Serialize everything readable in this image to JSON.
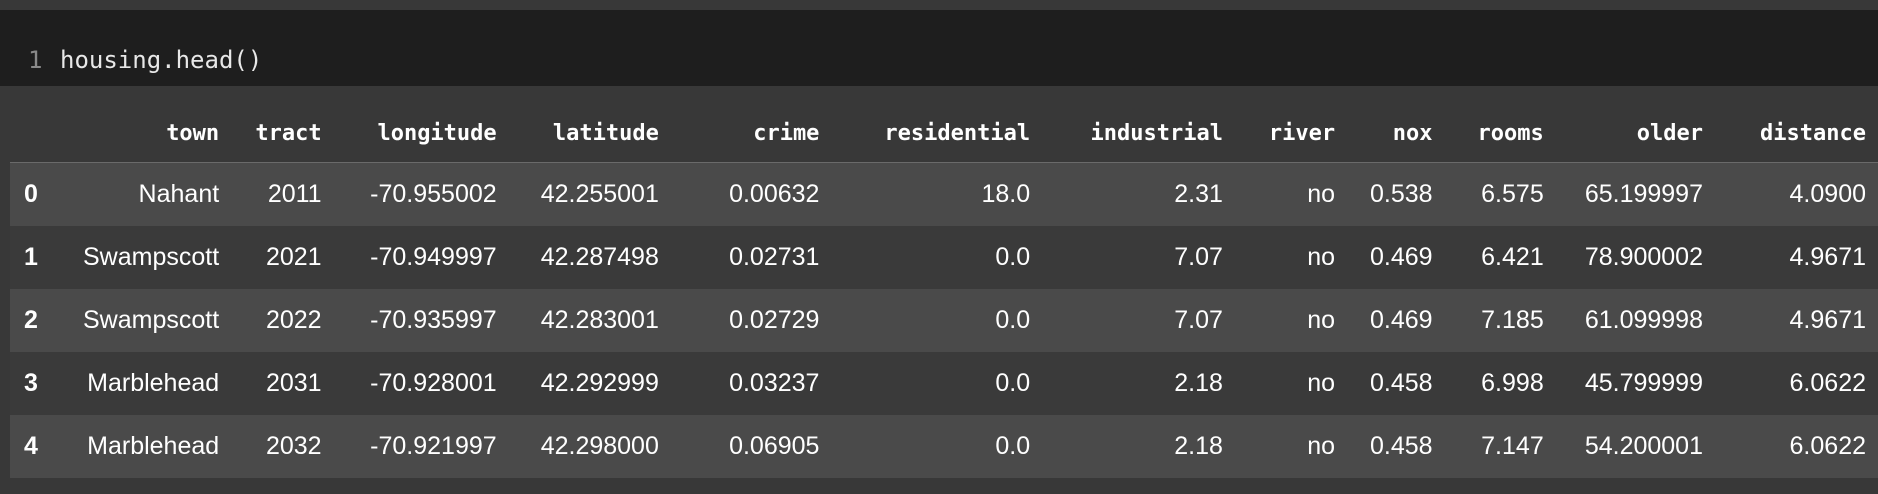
{
  "code_cell": {
    "line_number": "1",
    "code": "housing.head()"
  },
  "table": {
    "columns": [
      "town",
      "tract",
      "longitude",
      "latitude",
      "crime",
      "residential",
      "industrial",
      "river",
      "nox",
      "rooms",
      "older",
      "distance"
    ],
    "rows": [
      {
        "index": "0",
        "cells": [
          "Nahant",
          "2011",
          "-70.955002",
          "42.255001",
          "0.00632",
          "18.0",
          "2.31",
          "no",
          "0.538",
          "6.575",
          "65.199997",
          "4.0900"
        ]
      },
      {
        "index": "1",
        "cells": [
          "Swampscott",
          "2021",
          "-70.949997",
          "42.287498",
          "0.02731",
          "0.0",
          "7.07",
          "no",
          "0.469",
          "6.421",
          "78.900002",
          "4.9671"
        ]
      },
      {
        "index": "2",
        "cells": [
          "Swampscott",
          "2022",
          "-70.935997",
          "42.283001",
          "0.02729",
          "0.0",
          "7.07",
          "no",
          "0.469",
          "7.185",
          "61.099998",
          "4.9671"
        ]
      },
      {
        "index": "3",
        "cells": [
          "Marblehead",
          "2031",
          "-70.928001",
          "42.292999",
          "0.03237",
          "0.0",
          "2.18",
          "no",
          "0.458",
          "6.998",
          "45.799999",
          "6.0622"
        ]
      },
      {
        "index": "4",
        "cells": [
          "Marblehead",
          "2032",
          "-70.921997",
          "42.298000",
          "0.06905",
          "0.0",
          "2.18",
          "no",
          "0.458",
          "7.147",
          "54.200001",
          "6.0622"
        ]
      }
    ]
  }
}
